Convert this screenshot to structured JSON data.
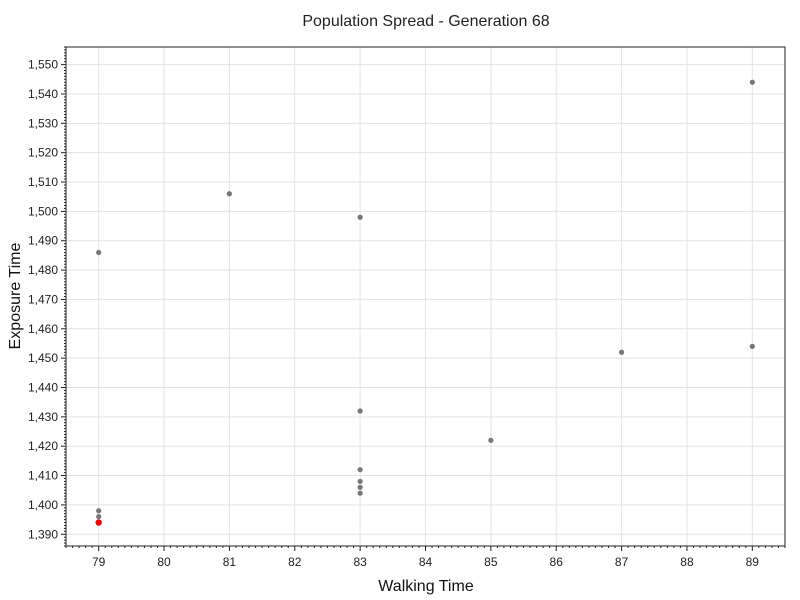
{
  "chart_data": {
    "type": "scatter",
    "title": "Population Spread - Generation 68",
    "xlabel": "Walking Time",
    "ylabel": "Exposure Time",
    "xlim": [
      78.5,
      89.5
    ],
    "ylim": [
      1386,
      1556
    ],
    "x_ticks": [
      79,
      80,
      81,
      82,
      83,
      84,
      85,
      86,
      87,
      88,
      89
    ],
    "x_tick_labels": [
      "79",
      "80",
      "81",
      "82",
      "83",
      "84",
      "85",
      "86",
      "87",
      "88",
      "89"
    ],
    "y_ticks": [
      1390,
      1400,
      1410,
      1420,
      1430,
      1440,
      1450,
      1460,
      1470,
      1480,
      1490,
      1500,
      1510,
      1520,
      1530,
      1540,
      1550
    ],
    "y_tick_labels": [
      "1,390",
      "1,400",
      "1,410",
      "1,420",
      "1,430",
      "1,440",
      "1,450",
      "1,460",
      "1,470",
      "1,480",
      "1,490",
      "1,500",
      "1,510",
      "1,520",
      "1,530",
      "1,540",
      "1,550"
    ],
    "grid": true,
    "point_color": "#777777",
    "highlight_color": "#ee0000",
    "points": [
      {
        "x": 79,
        "y": 1486
      },
      {
        "x": 79,
        "y": 1398
      },
      {
        "x": 79,
        "y": 1396
      },
      {
        "x": 81,
        "y": 1506
      },
      {
        "x": 83,
        "y": 1498
      },
      {
        "x": 83,
        "y": 1432
      },
      {
        "x": 83,
        "y": 1412
      },
      {
        "x": 83,
        "y": 1408
      },
      {
        "x": 83,
        "y": 1406
      },
      {
        "x": 83,
        "y": 1404
      },
      {
        "x": 85,
        "y": 1422
      },
      {
        "x": 87,
        "y": 1452
      },
      {
        "x": 89,
        "y": 1454
      },
      {
        "x": 89,
        "y": 1544
      }
    ],
    "highlight": [
      {
        "x": 79,
        "y": 1394
      }
    ]
  }
}
